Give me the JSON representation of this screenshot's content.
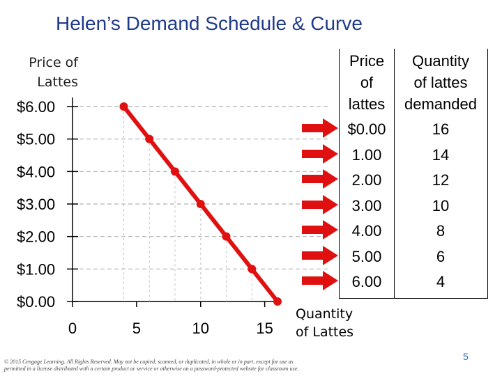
{
  "slide": {
    "title": "Helen’s Demand Schedule & Curve",
    "footer": "© 2015 Cengage Learning. All Rights Reserved. May not be copied, scanned, or duplicated, in whole or in part, except for use as permitted in a license distributed with a certain product or service or otherwise on a password-protected website for classroom use.",
    "page_number": "5",
    "accent_color": "#e01010",
    "title_color": "#1f3a8a"
  },
  "chart_data": {
    "type": "line",
    "xlabel": "Quantity of Lattes",
    "ylabel": "Price of Lattes",
    "xlim": [
      0,
      16
    ],
    "ylim": [
      0,
      6
    ],
    "x_ticks": [
      "0",
      "5",
      "10",
      "15"
    ],
    "x_tick_values": [
      0,
      5,
      10,
      15
    ],
    "y_ticks": [
      "$0.00",
      "$1.00",
      "$2.00",
      "$3.00",
      "$4.00",
      "$5.00",
      "$6.00"
    ],
    "y_tick_values": [
      0,
      1,
      2,
      3,
      4,
      5,
      6
    ],
    "gridlines": "dashed horizontal at each price",
    "series": [
      {
        "color": "#e01010",
        "points": [
          {
            "x": 4,
            "y": 6
          },
          {
            "x": 6,
            "y": 5
          },
          {
            "x": 8,
            "y": 4
          },
          {
            "x": 10,
            "y": 3
          },
          {
            "x": 12,
            "y": 2
          },
          {
            "x": 14,
            "y": 1
          },
          {
            "x": 16,
            "y": 0
          }
        ]
      }
    ]
  },
  "table": {
    "header_price": "Price of lattes",
    "header_qty": "Quantity of lattes demanded",
    "rows": [
      {
        "price": "$0.00",
        "qty": "16"
      },
      {
        "price": "1.00",
        "qty": "14"
      },
      {
        "price": "2.00",
        "qty": "12"
      },
      {
        "price": "3.00",
        "qty": "10"
      },
      {
        "price": "4.00",
        "qty": "8"
      },
      {
        "price": "5.00",
        "qty": "6"
      },
      {
        "price": "6.00",
        "qty": "4"
      }
    ]
  }
}
